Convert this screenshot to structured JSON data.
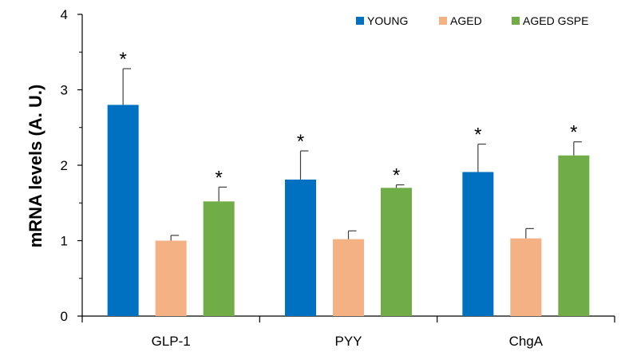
{
  "chart_data": {
    "type": "bar",
    "title": "",
    "xlabel": "",
    "ylabel": "mRNA levels (A. U.)",
    "ylim": [
      0,
      4
    ],
    "yticks": [
      0,
      1,
      2,
      3,
      4
    ],
    "categories": [
      "GLP-1",
      "PYY",
      "ChgA"
    ],
    "legend_position": "top-right",
    "series": [
      {
        "name": "YOUNG",
        "color": "#0070C0",
        "values": [
          2.8,
          1.81,
          1.91
        ],
        "errors": [
          0.48,
          0.38,
          0.37
        ],
        "significance": [
          "*",
          "*",
          "*"
        ]
      },
      {
        "name": "AGED",
        "color": "#F4B183",
        "values": [
          1.0,
          1.02,
          1.03
        ],
        "errors": [
          0.07,
          0.11,
          0.13
        ],
        "significance": [
          "",
          "",
          ""
        ]
      },
      {
        "name": "AGED GSPE",
        "color": "#70AD47",
        "values": [
          1.52,
          1.7,
          2.13
        ],
        "errors": [
          0.19,
          0.04,
          0.18
        ],
        "significance": [
          "*",
          "*",
          "*"
        ]
      }
    ],
    "grid": false
  }
}
